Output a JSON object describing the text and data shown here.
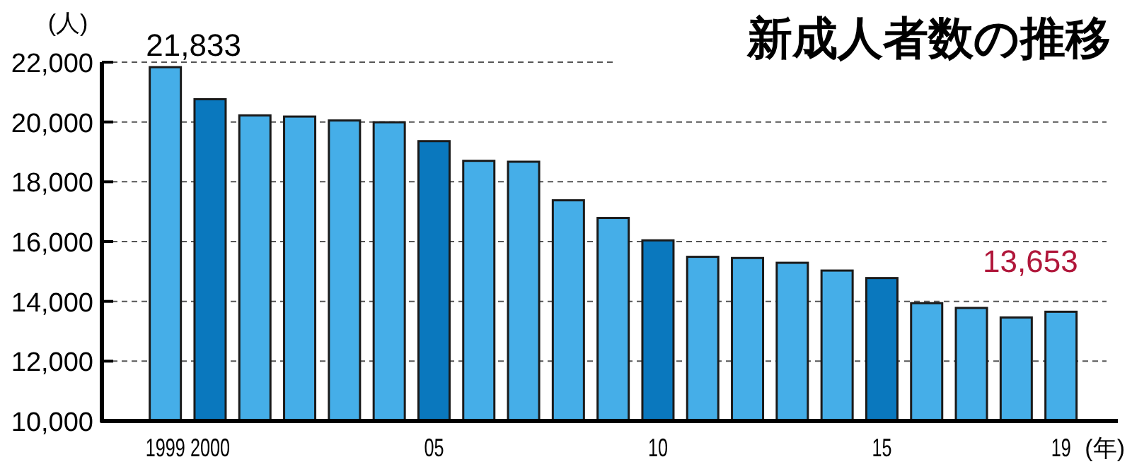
{
  "chart_data": {
    "type": "bar",
    "title": "新成人者数の推移",
    "ylabel": "(人)",
    "xlabel": "(年)",
    "categories": [
      "1999",
      "2000",
      null,
      null,
      null,
      null,
      "05",
      null,
      null,
      null,
      null,
      "10",
      null,
      null,
      null,
      null,
      "15",
      null,
      null,
      null,
      "19"
    ],
    "values": [
      21833,
      20760,
      20220,
      20180,
      20050,
      19990,
      19360,
      18700,
      18670,
      17380,
      16790,
      16040,
      15490,
      15450,
      15290,
      15030,
      14780,
      13940,
      13780,
      13460,
      13653
    ],
    "colors": [
      "#45aee8",
      "#0a78be",
      "#45aee8",
      "#45aee8",
      "#45aee8",
      "#45aee8",
      "#0a78be",
      "#45aee8",
      "#45aee8",
      "#45aee8",
      "#45aee8",
      "#0a78be",
      "#45aee8",
      "#45aee8",
      "#45aee8",
      "#45aee8",
      "#0a78be",
      "#45aee8",
      "#45aee8",
      "#45aee8",
      "#45aee8"
    ],
    "value_labels": [
      "21,833",
      null,
      null,
      null,
      null,
      null,
      null,
      null,
      null,
      null,
      null,
      null,
      null,
      null,
      null,
      null,
      null,
      null,
      null,
      null,
      "13,653"
    ],
    "ylim": [
      10000,
      22000
    ],
    "yticks": [
      {
        "value": 10000,
        "label": "10,000"
      },
      {
        "value": 12000,
        "label": "12,000"
      },
      {
        "value": 14000,
        "label": "14,000"
      },
      {
        "value": 16000,
        "label": "16,000"
      },
      {
        "value": 18000,
        "label": "18,000"
      },
      {
        "value": 20000,
        "label": "20,000"
      },
      {
        "value": 22000,
        "label": "22,000"
      }
    ],
    "grid": "y"
  }
}
